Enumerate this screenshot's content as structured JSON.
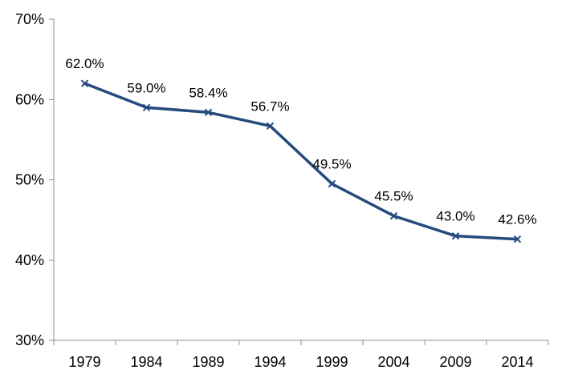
{
  "chart_data": {
    "type": "line",
    "title": "",
    "xlabel": "",
    "ylabel": "",
    "categories": [
      "1979",
      "1984",
      "1989",
      "1994",
      "1999",
      "2004",
      "2009",
      "2014"
    ],
    "series": [
      {
        "values": [
          62.0,
          59.0,
          58.4,
          56.7,
          49.5,
          45.5,
          43.0,
          42.6
        ],
        "data_labels": [
          "62.0%",
          "59.0%",
          "58.4%",
          "56.7%",
          "49.5%",
          "45.5%",
          "43.0%",
          "42.6%"
        ],
        "color": "#254b7f",
        "marker": "x"
      }
    ],
    "ylim": [
      30,
      70
    ],
    "yticks": [
      30,
      40,
      50,
      60,
      70
    ],
    "ytick_labels": [
      "30%",
      "40%",
      "50%",
      "60%",
      "70%"
    ],
    "grid": false,
    "legend": "none"
  }
}
